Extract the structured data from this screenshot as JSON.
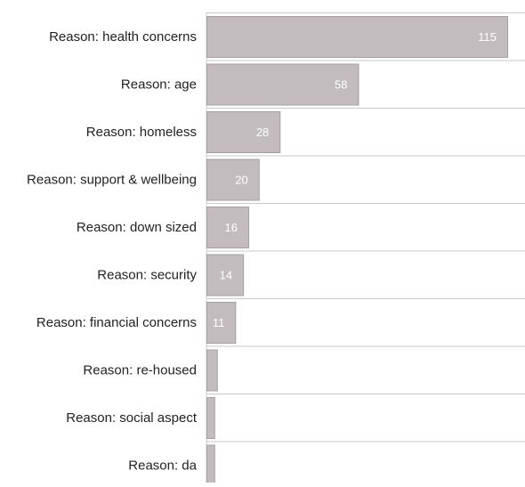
{
  "chart_data": {
    "type": "bar",
    "orientation": "horizontal",
    "categories": [
      "Reason: health concerns",
      "Reason: age",
      "Reason: homeless",
      "Reason: support & wellbeing",
      "Reason: down sized",
      "Reason: security",
      "Reason: financial concerns",
      "Reason: re-housed",
      "Reason: social aspect",
      "Reason: da"
    ],
    "values": [
      115,
      58,
      28,
      20,
      16,
      14,
      11,
      4,
      3,
      3
    ],
    "data_labels": [
      "115",
      "58",
      "28",
      "20",
      "16",
      "14",
      "11",
      "",
      "",
      ""
    ],
    "title": "",
    "xlabel": "",
    "ylabel": "",
    "xlim": [
      0,
      120
    ],
    "grid": "horizontal separators between rows",
    "legend": "none"
  },
  "colors": {
    "bar_fill": "#c2bcbf",
    "bar_stroke": "#a59fa2",
    "separator": "#c8c8c8",
    "category_text": "#222222",
    "value_text": "#ffffff"
  }
}
